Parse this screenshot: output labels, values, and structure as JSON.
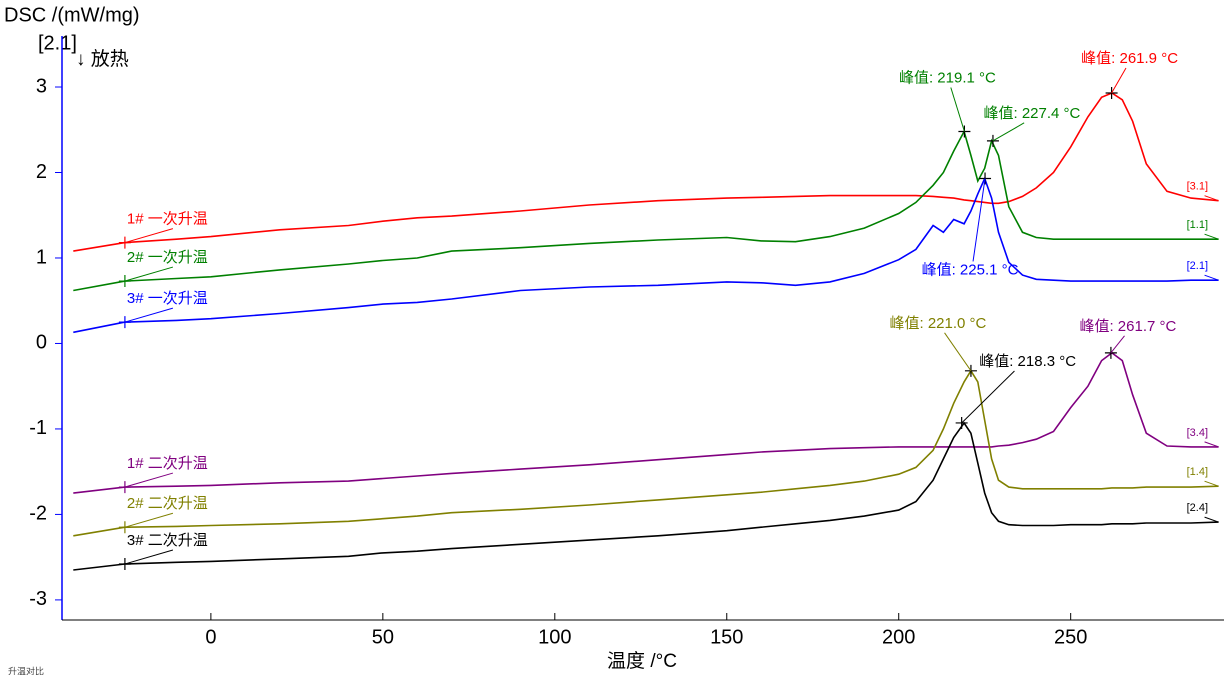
{
  "chart_data": {
    "type": "line",
    "y_label": "DSC /(mW/mg)",
    "axis_tag": "[2.1]",
    "exo_label": "↓ 放热",
    "x_label": "温度 /°C",
    "footer": "升温对比",
    "xlim": [
      -43,
      294
    ],
    "ylim": [
      -3.2,
      3.55
    ],
    "xticks": [
      0,
      50,
      100,
      150,
      200,
      250
    ],
    "yticks": [
      -3,
      -2,
      -1,
      0,
      1,
      2,
      3
    ],
    "x": [
      -40,
      -25,
      -10,
      0,
      20,
      40,
      50,
      60,
      70,
      90,
      110,
      130,
      150,
      160,
      170,
      180,
      190,
      200,
      205,
      210,
      213,
      216,
      219,
      221,
      223,
      225,
      227,
      229,
      232,
      236,
      240,
      245,
      250,
      255,
      259,
      262,
      265,
      268,
      272,
      278,
      285,
      293
    ],
    "series": [
      {
        "name": "1# 一次升温",
        "end_label": "[3.1]",
        "color": "#ff0000",
        "values": [
          1.08,
          1.18,
          1.22,
          1.25,
          1.33,
          1.38,
          1.43,
          1.47,
          1.49,
          1.55,
          1.62,
          1.67,
          1.7,
          1.71,
          1.72,
          1.73,
          1.73,
          1.73,
          1.73,
          1.72,
          1.71,
          1.7,
          1.68,
          1.67,
          1.66,
          1.65,
          1.64,
          1.64,
          1.66,
          1.72,
          1.82,
          2.0,
          2.3,
          2.65,
          2.88,
          2.93,
          2.85,
          2.6,
          2.1,
          1.78,
          1.7,
          1.67
        ]
      },
      {
        "name": "2# 一次升温",
        "end_label": "[1.1]",
        "color": "#008000",
        "values": [
          0.62,
          0.73,
          0.76,
          0.78,
          0.86,
          0.93,
          0.97,
          1.0,
          1.08,
          1.12,
          1.17,
          1.21,
          1.24,
          1.2,
          1.19,
          1.25,
          1.35,
          1.52,
          1.65,
          1.85,
          2.0,
          2.25,
          2.48,
          2.2,
          1.9,
          2.05,
          2.37,
          2.2,
          1.6,
          1.3,
          1.24,
          1.22,
          1.22,
          1.22,
          1.22,
          1.22,
          1.22,
          1.22,
          1.22,
          1.22,
          1.22,
          1.22
        ]
      },
      {
        "name": "3# 一次升温",
        "end_label": "[2.1]",
        "color": "#0000ff",
        "values": [
          0.13,
          0.25,
          0.27,
          0.29,
          0.35,
          0.42,
          0.46,
          0.48,
          0.52,
          0.62,
          0.66,
          0.68,
          0.72,
          0.71,
          0.68,
          0.72,
          0.82,
          0.98,
          1.1,
          1.38,
          1.3,
          1.45,
          1.4,
          1.55,
          1.75,
          1.93,
          1.7,
          1.3,
          0.95,
          0.8,
          0.75,
          0.74,
          0.73,
          0.73,
          0.73,
          0.73,
          0.73,
          0.73,
          0.73,
          0.73,
          0.74,
          0.74
        ]
      },
      {
        "name": "1# 二次升温",
        "end_label": "[3.4]",
        "color": "#800080",
        "values": [
          -1.75,
          -1.68,
          -1.67,
          -1.66,
          -1.63,
          -1.61,
          -1.58,
          -1.55,
          -1.52,
          -1.47,
          -1.42,
          -1.36,
          -1.3,
          -1.27,
          -1.25,
          -1.23,
          -1.22,
          -1.21,
          -1.21,
          -1.21,
          -1.21,
          -1.21,
          -1.21,
          -1.21,
          -1.21,
          -1.21,
          -1.21,
          -1.2,
          -1.19,
          -1.16,
          -1.12,
          -1.03,
          -0.75,
          -0.5,
          -0.2,
          -0.11,
          -0.2,
          -0.6,
          -1.05,
          -1.2,
          -1.21,
          -1.21
        ]
      },
      {
        "name": "2# 二次升温",
        "end_label": "[1.4]",
        "color": "#808000",
        "values": [
          -2.25,
          -2.15,
          -2.14,
          -2.13,
          -2.11,
          -2.08,
          -2.05,
          -2.02,
          -1.98,
          -1.94,
          -1.89,
          -1.83,
          -1.77,
          -1.74,
          -1.7,
          -1.66,
          -1.61,
          -1.53,
          -1.45,
          -1.25,
          -1.0,
          -0.7,
          -0.45,
          -0.32,
          -0.45,
          -0.9,
          -1.35,
          -1.6,
          -1.68,
          -1.7,
          -1.7,
          -1.7,
          -1.7,
          -1.7,
          -1.7,
          -1.69,
          -1.69,
          -1.69,
          -1.68,
          -1.68,
          -1.68,
          -1.67
        ]
      },
      {
        "name": "3# 二次升温",
        "end_label": "[2.4]",
        "color": "#000000",
        "values": [
          -2.65,
          -2.58,
          -2.56,
          -2.55,
          -2.52,
          -2.49,
          -2.45,
          -2.43,
          -2.4,
          -2.35,
          -2.3,
          -2.25,
          -2.19,
          -2.15,
          -2.11,
          -2.07,
          -2.02,
          -1.95,
          -1.85,
          -1.6,
          -1.35,
          -1.1,
          -0.93,
          -1.05,
          -1.4,
          -1.75,
          -1.98,
          -2.08,
          -2.12,
          -2.13,
          -2.13,
          -2.13,
          -2.12,
          -2.12,
          -2.12,
          -2.11,
          -2.11,
          -2.11,
          -2.1,
          -2.1,
          -2.1,
          -2.09
        ]
      }
    ],
    "annotations": [
      {
        "text": "峰值: 261.9 °C",
        "x": 261.9,
        "y": 2.93,
        "color": "#ff0000"
      },
      {
        "text": "峰值: 219.1 °C",
        "x": 219.1,
        "y": 2.48,
        "color": "#008000"
      },
      {
        "text": "峰值: 227.4 °C",
        "x": 227.4,
        "y": 2.37,
        "color": "#008000"
      },
      {
        "text": "峰值: 225.1 °C",
        "x": 225.1,
        "y": 1.93,
        "color": "#0000ff"
      },
      {
        "text": "峰值: 221.0 °C",
        "x": 221.0,
        "y": -0.32,
        "color": "#808000"
      },
      {
        "text": "峰值: 261.7 °C",
        "x": 261.7,
        "y": -0.11,
        "color": "#800080"
      },
      {
        "text": "峰值: 218.3 °C",
        "x": 218.3,
        "y": -0.93,
        "color": "#000000"
      }
    ]
  }
}
